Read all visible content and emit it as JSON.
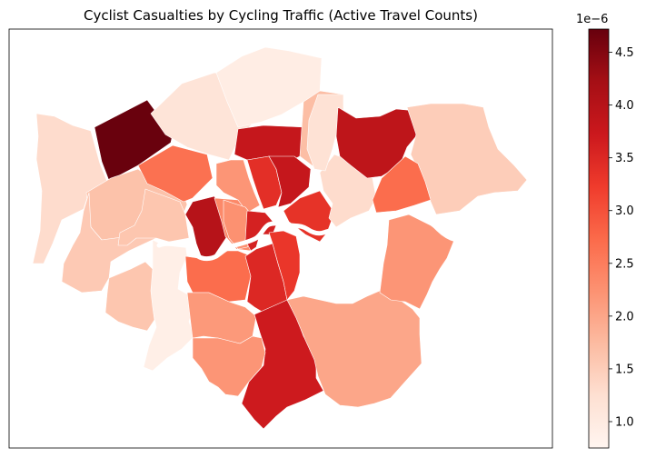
{
  "title": "Cyclist Casualties by Cycling Traffic (Active Travel Counts)",
  "colorbar": {
    "exponent_label": "1e−6",
    "min": 0.75,
    "max": 4.72,
    "ticks": [
      "1.0",
      "1.5",
      "2.0",
      "2.5",
      "3.0",
      "3.5",
      "4.0",
      "4.5"
    ],
    "tick_values": [
      1.0,
      1.5,
      2.0,
      2.5,
      3.0,
      3.5,
      4.0,
      4.5
    ],
    "colors": [
      "#fff5f0",
      "#fee0d2",
      "#fcbba1",
      "#fc9272",
      "#fb6a4a",
      "#ef3b2c",
      "#cb181d",
      "#a50f15",
      "#67000d"
    ]
  },
  "chart_data": {
    "type": "choropleth",
    "title": "Cyclist Casualties by Cycling Traffic (Active Travel Counts)",
    "colorbar_scale": "1e-6",
    "colorbar_range": [
      0.75,
      4.72
    ],
    "regions": [
      {
        "value": 4.7
      },
      {
        "value": 1.3
      },
      {
        "value": 1.65
      },
      {
        "value": 1.15
      },
      {
        "value": 0.95
      },
      {
        "value": 3.8
      },
      {
        "value": 2.65
      },
      {
        "value": 1.7
      },
      {
        "value": 2.2
      },
      {
        "value": 3.4
      },
      {
        "value": 3.8
      },
      {
        "value": 4.0
      },
      {
        "value": 1.55
      },
      {
        "value": 2.35
      },
      {
        "value": 1.6
      },
      {
        "value": 2.25
      },
      {
        "value": 3.6
      },
      {
        "value": 3.35
      },
      {
        "value": 1.3
      },
      {
        "value": 1.2
      },
      {
        "value": 0.9
      },
      {
        "value": 2.7
      },
      {
        "value": 2.15
      },
      {
        "value": 1.6
      },
      {
        "value": 3.5
      },
      {
        "value": 3.3
      },
      {
        "value": 3.7
      },
      {
        "value": 2.2
      },
      {
        "value": 2.0
      },
      {
        "value": 3.9
      },
      {
        "value": 1.5
      },
      {
        "value": 2.7
      },
      {
        "value": 2.2
      }
    ]
  }
}
